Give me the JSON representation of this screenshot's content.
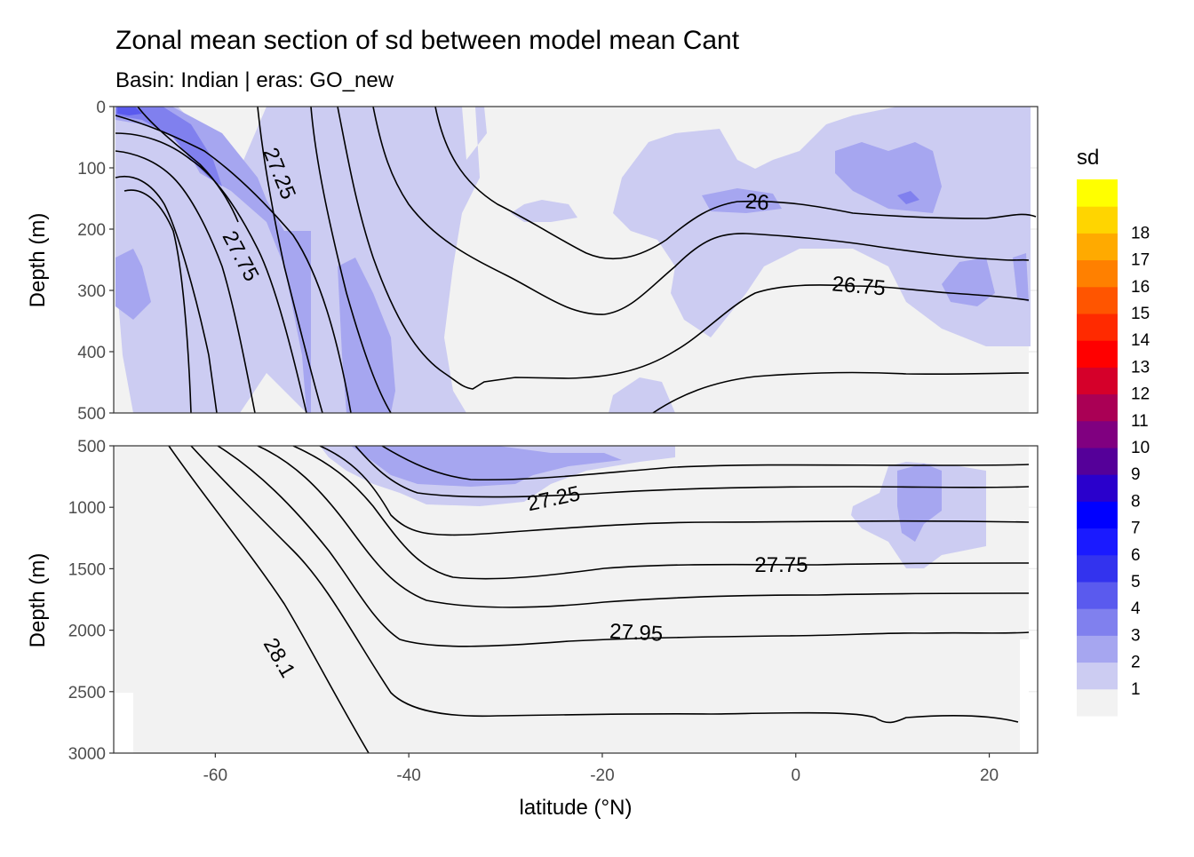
{
  "chart_data": {
    "type": "heatmap",
    "title": "Zonal mean section of sd between model mean Cant",
    "subtitle": "Basin: Indian | eras: GO_new",
    "xlabel": "latitude (°N)",
    "ylabel": "Depth (m)",
    "x_ticks": [
      "-60",
      "-40",
      "-20",
      "0",
      "20"
    ],
    "x_tick_values": [
      -60,
      -40,
      -20,
      0,
      20
    ],
    "xlim": [
      -70.5,
      25
    ],
    "panels": [
      {
        "name": "upper",
        "ylim": [
          0,
          500
        ],
        "y_ticks": [
          "0",
          "100",
          "200",
          "300",
          "400",
          "500"
        ],
        "y_tick_values": [
          0,
          100,
          200,
          300,
          400,
          500
        ],
        "contour_labels": [
          {
            "text": "27.25",
            "lat": -53.5,
            "depth": 110,
            "angle": 68
          },
          {
            "text": "27.75",
            "lat": -57.5,
            "depth": 245,
            "angle": 62
          },
          {
            "text": "26",
            "lat": -4,
            "depth": 158,
            "angle": 5
          },
          {
            "text": "26.75",
            "lat": 6.5,
            "depth": 295,
            "angle": 5
          }
        ]
      },
      {
        "name": "lower",
        "ylim": [
          500,
          3000
        ],
        "y_ticks": [
          "500",
          "1000",
          "1500",
          "2000",
          "2500",
          "3000"
        ],
        "y_tick_values": [
          500,
          1000,
          1500,
          2000,
          2500,
          3000
        ],
        "contour_labels": [
          {
            "text": "27.25",
            "lat": -25,
            "depth": 940,
            "angle": -12
          },
          {
            "text": "27.75",
            "lat": -1.5,
            "depth": 1480,
            "angle": 0
          },
          {
            "text": "27.95",
            "lat": -16.5,
            "depth": 2030,
            "angle": 3
          },
          {
            "text": "28.1",
            "lat": -53.5,
            "depth": 2230,
            "angle": 60
          }
        ]
      }
    ],
    "legend": {
      "title": "sd",
      "labels": [
        "1",
        "2",
        "3",
        "4",
        "5",
        "6",
        "7",
        "8",
        "9",
        "10",
        "11",
        "12",
        "13",
        "14",
        "15",
        "16",
        "17",
        "18"
      ],
      "colors": [
        "#f2f2f2",
        "#ccccf2",
        "#a6a6f0",
        "#8080ee",
        "#5a5aee",
        "#3333ee",
        "#1a1aff",
        "#0000ff",
        "#2a00cc",
        "#550099",
        "#800080",
        "#aa0055",
        "#d5002a",
        "#ff0000",
        "#ff2a00",
        "#ff5500",
        "#ff8000",
        "#ffaa00",
        "#ffd500",
        "#ffff00"
      ]
    }
  }
}
